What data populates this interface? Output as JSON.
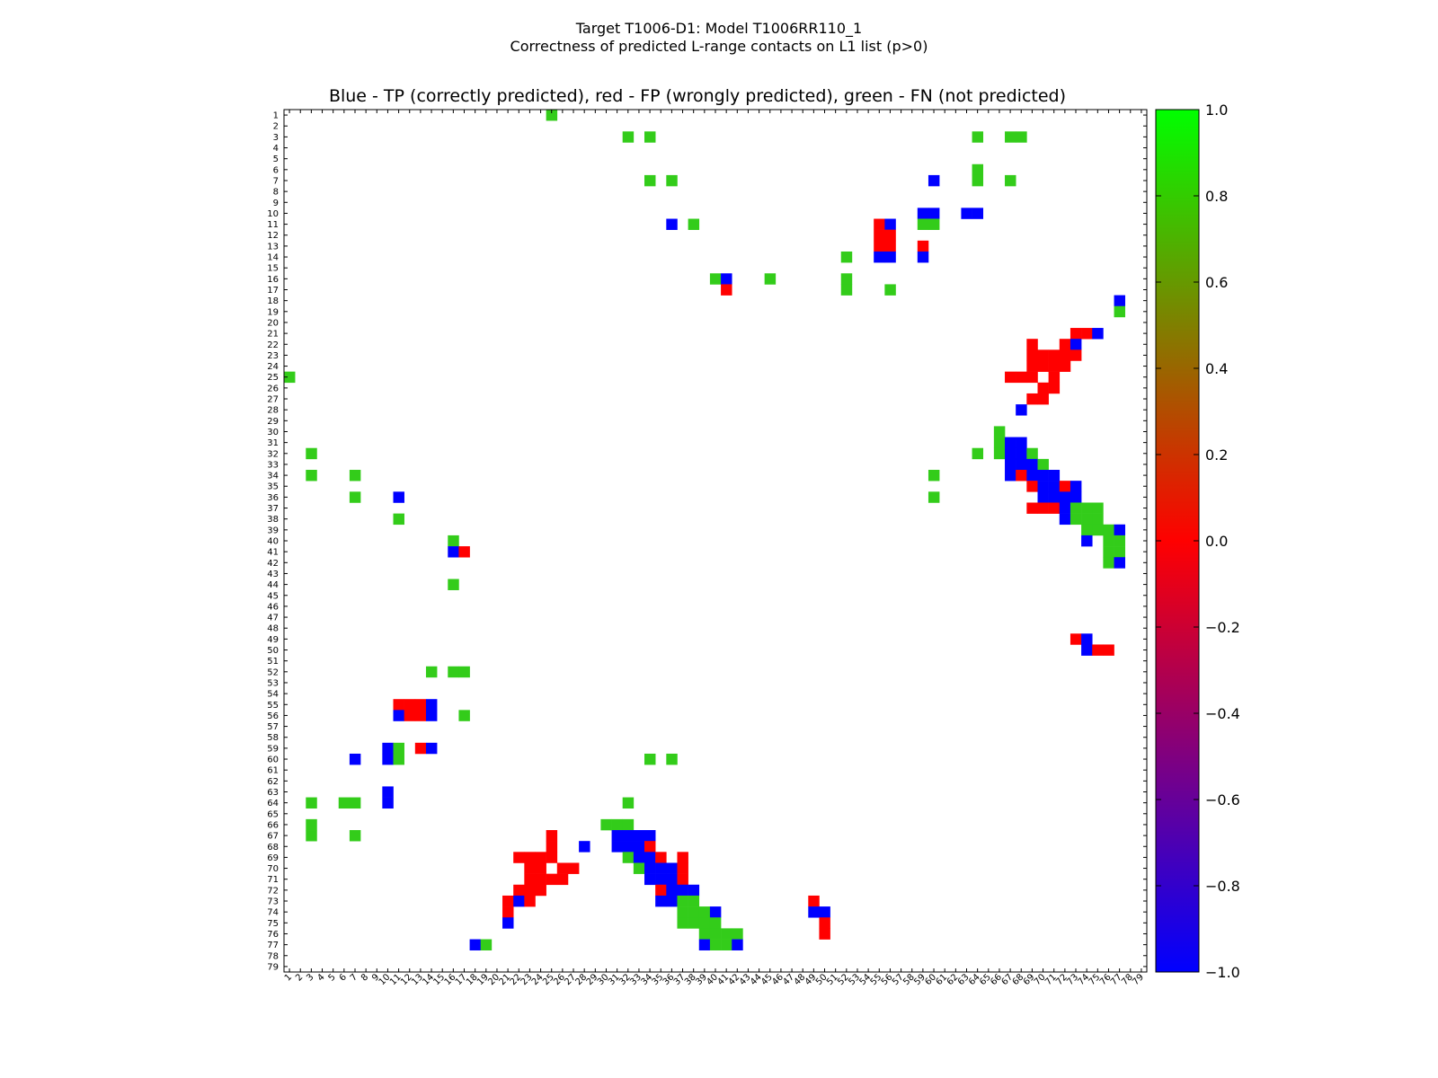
{
  "suptitle_line1": "Target T1006-D1: Model T1006RR110_1",
  "suptitle_line2": "Correctness of predicted L-range contacts on L1 list (p>0)",
  "chart_data": {
    "type": "heatmap",
    "title": "Blue - TP (correctly predicted), red - FP (wrongly predicted), green - FN (not predicted)",
    "n": 79,
    "x_ticks": "1..79",
    "y_ticks": "1..79",
    "value_meaning": {
      "-1": "TP (blue)",
      "0": "FP (red)",
      "0.8": "FN (green)"
    },
    "colorbar": {
      "range": [
        -1.0,
        1.0
      ],
      "ticks": [
        "1.0",
        "0.8",
        "0.6",
        "0.4",
        "0.2",
        "0.0",
        "−0.2",
        "−0.4",
        "−0.6",
        "−0.8",
        "−1.0"
      ],
      "tick_values": [
        1.0,
        0.8,
        0.6,
        0.4,
        0.2,
        0.0,
        -0.2,
        -0.4,
        -0.6,
        -0.8,
        -1.0
      ],
      "colors": [
        "#0000ff",
        "#ff0000",
        "#00ff00"
      ]
    },
    "colors": {
      "tp": "#0000ff",
      "fp": "#ff0000",
      "fn": "#33cc1a"
    },
    "cells": [
      [
        1,
        25,
        "fn"
      ],
      [
        3,
        32,
        "fn"
      ],
      [
        3,
        34,
        "fn"
      ],
      [
        3,
        64,
        "fn"
      ],
      [
        3,
        67,
        "fn"
      ],
      [
        3,
        68,
        "fn"
      ],
      [
        6,
        64,
        "fn"
      ],
      [
        7,
        34,
        "fn"
      ],
      [
        7,
        36,
        "fn"
      ],
      [
        7,
        60,
        "tp"
      ],
      [
        7,
        64,
        "fn"
      ],
      [
        7,
        67,
        "fn"
      ],
      [
        10,
        59,
        "tp"
      ],
      [
        10,
        60,
        "tp"
      ],
      [
        10,
        63,
        "tp"
      ],
      [
        10,
        64,
        "tp"
      ],
      [
        11,
        36,
        "tp"
      ],
      [
        11,
        38,
        "fn"
      ],
      [
        11,
        55,
        "fp"
      ],
      [
        11,
        56,
        "tp"
      ],
      [
        11,
        59,
        "fn"
      ],
      [
        11,
        60,
        "fn"
      ],
      [
        12,
        55,
        "fp"
      ],
      [
        12,
        56,
        "fp"
      ],
      [
        13,
        55,
        "fp"
      ],
      [
        13,
        56,
        "fp"
      ],
      [
        13,
        59,
        "fp"
      ],
      [
        14,
        52,
        "fn"
      ],
      [
        14,
        55,
        "tp"
      ],
      [
        14,
        56,
        "tp"
      ],
      [
        14,
        59,
        "tp"
      ],
      [
        16,
        40,
        "fn"
      ],
      [
        16,
        41,
        "tp"
      ],
      [
        16,
        45,
        "fn"
      ],
      [
        16,
        52,
        "fn"
      ],
      [
        17,
        41,
        "fp"
      ],
      [
        17,
        52,
        "fn"
      ],
      [
        17,
        56,
        "fn"
      ],
      [
        18,
        77,
        "tp"
      ],
      [
        19,
        77,
        "fn"
      ],
      [
        21,
        73,
        "fp"
      ],
      [
        21,
        74,
        "fp"
      ],
      [
        21,
        75,
        "tp"
      ],
      [
        22,
        69,
        "fp"
      ],
      [
        22,
        72,
        "fp"
      ],
      [
        22,
        73,
        "tp"
      ],
      [
        23,
        69,
        "fp"
      ],
      [
        23,
        70,
        "fp"
      ],
      [
        23,
        71,
        "fp"
      ],
      [
        23,
        72,
        "fp"
      ],
      [
        23,
        73,
        "fp"
      ],
      [
        24,
        69,
        "fp"
      ],
      [
        24,
        70,
        "fp"
      ],
      [
        24,
        71,
        "fp"
      ],
      [
        24,
        72,
        "fp"
      ],
      [
        25,
        1,
        "fn"
      ],
      [
        25,
        67,
        "fp"
      ],
      [
        25,
        68,
        "fp"
      ],
      [
        25,
        69,
        "fp"
      ],
      [
        25,
        71,
        "fp"
      ],
      [
        26,
        70,
        "fp"
      ],
      [
        26,
        71,
        "fp"
      ],
      [
        27,
        69,
        "fp"
      ],
      [
        27,
        70,
        "fp"
      ],
      [
        28,
        68,
        "tp"
      ],
      [
        30,
        66,
        "fn"
      ],
      [
        31,
        66,
        "fn"
      ],
      [
        31,
        67,
        "tp"
      ],
      [
        31,
        68,
        "tp"
      ],
      [
        32,
        3,
        "fn"
      ],
      [
        32,
        64,
        "fn"
      ],
      [
        32,
        66,
        "fn"
      ],
      [
        32,
        67,
        "tp"
      ],
      [
        32,
        68,
        "tp"
      ],
      [
        32,
        69,
        "fn"
      ],
      [
        33,
        67,
        "tp"
      ],
      [
        33,
        68,
        "tp"
      ],
      [
        33,
        69,
        "tp"
      ],
      [
        33,
        70,
        "fn"
      ],
      [
        34,
        3,
        "fn"
      ],
      [
        34,
        7,
        "fn"
      ],
      [
        34,
        60,
        "fn"
      ],
      [
        34,
        67,
        "tp"
      ],
      [
        34,
        68,
        "fp"
      ],
      [
        34,
        69,
        "tp"
      ],
      [
        34,
        70,
        "tp"
      ],
      [
        34,
        71,
        "tp"
      ],
      [
        35,
        69,
        "fp"
      ],
      [
        35,
        70,
        "tp"
      ],
      [
        35,
        71,
        "tp"
      ],
      [
        35,
        72,
        "fp"
      ],
      [
        35,
        73,
        "tp"
      ],
      [
        36,
        7,
        "fn"
      ],
      [
        36,
        11,
        "tp"
      ],
      [
        36,
        60,
        "fn"
      ],
      [
        36,
        70,
        "tp"
      ],
      [
        36,
        71,
        "tp"
      ],
      [
        36,
        72,
        "tp"
      ],
      [
        36,
        73,
        "tp"
      ],
      [
        37,
        69,
        "fp"
      ],
      [
        37,
        70,
        "fp"
      ],
      [
        37,
        71,
        "fp"
      ],
      [
        37,
        72,
        "tp"
      ],
      [
        37,
        73,
        "fn"
      ],
      [
        37,
        74,
        "fn"
      ],
      [
        37,
        75,
        "fn"
      ],
      [
        38,
        11,
        "fn"
      ],
      [
        38,
        72,
        "tp"
      ],
      [
        38,
        73,
        "fn"
      ],
      [
        38,
        74,
        "fn"
      ],
      [
        38,
        75,
        "fn"
      ],
      [
        39,
        74,
        "fn"
      ],
      [
        39,
        75,
        "fn"
      ],
      [
        39,
        76,
        "fn"
      ],
      [
        39,
        77,
        "tp"
      ],
      [
        40,
        16,
        "fn"
      ],
      [
        40,
        74,
        "tp"
      ],
      [
        40,
        76,
        "fn"
      ],
      [
        40,
        77,
        "fn"
      ],
      [
        41,
        16,
        "tp"
      ],
      [
        41,
        17,
        "fp"
      ],
      [
        41,
        76,
        "fn"
      ],
      [
        41,
        77,
        "fn"
      ],
      [
        42,
        76,
        "fn"
      ],
      [
        42,
        77,
        "tp"
      ],
      [
        44,
        16,
        "fn"
      ],
      [
        49,
        73,
        "fp"
      ],
      [
        49,
        74,
        "tp"
      ],
      [
        50,
        74,
        "tp"
      ],
      [
        50,
        75,
        "fp"
      ],
      [
        50,
        76,
        "fp"
      ],
      [
        52,
        14,
        "fn"
      ],
      [
        52,
        16,
        "fn"
      ],
      [
        52,
        17,
        "fn"
      ],
      [
        55,
        11,
        "fp"
      ],
      [
        55,
        12,
        "fp"
      ],
      [
        55,
        13,
        "fp"
      ],
      [
        55,
        14,
        "tp"
      ],
      [
        56,
        11,
        "tp"
      ],
      [
        56,
        12,
        "fp"
      ],
      [
        56,
        13,
        "fp"
      ],
      [
        56,
        14,
        "tp"
      ],
      [
        56,
        17,
        "fn"
      ],
      [
        59,
        10,
        "tp"
      ],
      [
        59,
        11,
        "fn"
      ],
      [
        59,
        13,
        "fp"
      ],
      [
        59,
        14,
        "tp"
      ],
      [
        60,
        7,
        "tp"
      ],
      [
        60,
        10,
        "tp"
      ],
      [
        60,
        11,
        "fn"
      ],
      [
        60,
        34,
        "fn"
      ],
      [
        60,
        36,
        "fn"
      ],
      [
        63,
        10,
        "tp"
      ],
      [
        64,
        3,
        "fn"
      ],
      [
        64,
        6,
        "fn"
      ],
      [
        64,
        7,
        "fn"
      ],
      [
        64,
        10,
        "tp"
      ],
      [
        64,
        32,
        "fn"
      ],
      [
        66,
        3,
        "fn"
      ],
      [
        66,
        30,
        "fn"
      ],
      [
        66,
        31,
        "fn"
      ],
      [
        66,
        32,
        "fn"
      ],
      [
        67,
        3,
        "fn"
      ],
      [
        67,
        7,
        "fn"
      ],
      [
        67,
        25,
        "fp"
      ],
      [
        67,
        31,
        "tp"
      ],
      [
        67,
        32,
        "tp"
      ],
      [
        67,
        33,
        "tp"
      ],
      [
        67,
        34,
        "tp"
      ],
      [
        68,
        25,
        "fp"
      ],
      [
        68,
        28,
        "tp"
      ],
      [
        68,
        31,
        "tp"
      ],
      [
        68,
        32,
        "tp"
      ],
      [
        68,
        33,
        "tp"
      ],
      [
        68,
        34,
        "fp"
      ],
      [
        69,
        22,
        "fp"
      ],
      [
        69,
        23,
        "fp"
      ],
      [
        69,
        24,
        "fp"
      ],
      [
        69,
        25,
        "fp"
      ],
      [
        69,
        32,
        "fn"
      ],
      [
        69,
        33,
        "tp"
      ],
      [
        69,
        34,
        "tp"
      ],
      [
        69,
        35,
        "fp"
      ],
      [
        69,
        37,
        "fp"
      ],
      [
        70,
        23,
        "fp"
      ],
      [
        70,
        24,
        "fp"
      ],
      [
        70,
        26,
        "fp"
      ],
      [
        70,
        27,
        "fp"
      ],
      [
        70,
        33,
        "fn"
      ],
      [
        70,
        34,
        "tp"
      ],
      [
        70,
        35,
        "tp"
      ],
      [
        70,
        36,
        "tp"
      ],
      [
        70,
        37,
        "fp"
      ],
      [
        71,
        23,
        "fp"
      ],
      [
        71,
        24,
        "fp"
      ],
      [
        71,
        25,
        "fp"
      ],
      [
        71,
        26,
        "fp"
      ],
      [
        71,
        34,
        "tp"
      ],
      [
        71,
        35,
        "tp"
      ],
      [
        71,
        36,
        "tp"
      ],
      [
        71,
        37,
        "fp"
      ],
      [
        72,
        22,
        "fp"
      ],
      [
        72,
        23,
        "fp"
      ],
      [
        72,
        24,
        "fp"
      ],
      [
        72,
        35,
        "fp"
      ],
      [
        72,
        36,
        "tp"
      ],
      [
        72,
        37,
        "tp"
      ],
      [
        72,
        38,
        "tp"
      ],
      [
        73,
        21,
        "fp"
      ],
      [
        73,
        22,
        "tp"
      ],
      [
        73,
        23,
        "fp"
      ],
      [
        73,
        35,
        "tp"
      ],
      [
        73,
        36,
        "tp"
      ],
      [
        73,
        37,
        "fn"
      ],
      [
        73,
        38,
        "fn"
      ],
      [
        73,
        49,
        "fp"
      ],
      [
        74,
        21,
        "fp"
      ],
      [
        74,
        37,
        "fn"
      ],
      [
        74,
        38,
        "fn"
      ],
      [
        74,
        39,
        "fn"
      ],
      [
        74,
        40,
        "tp"
      ],
      [
        74,
        49,
        "tp"
      ],
      [
        74,
        50,
        "tp"
      ],
      [
        75,
        21,
        "tp"
      ],
      [
        75,
        37,
        "fn"
      ],
      [
        75,
        38,
        "fn"
      ],
      [
        75,
        39,
        "fn"
      ],
      [
        75,
        40,
        "fn"
      ],
      [
        75,
        50,
        "fp"
      ],
      [
        76,
        39,
        "fn"
      ],
      [
        76,
        40,
        "fn"
      ],
      [
        76,
        41,
        "fn"
      ],
      [
        76,
        42,
        "fn"
      ],
      [
        76,
        50,
        "fp"
      ],
      [
        77,
        18,
        "tp"
      ],
      [
        77,
        19,
        "fn"
      ],
      [
        77,
        39,
        "tp"
      ],
      [
        77,
        40,
        "fn"
      ],
      [
        77,
        41,
        "fn"
      ],
      [
        77,
        42,
        "tp"
      ]
    ]
  }
}
